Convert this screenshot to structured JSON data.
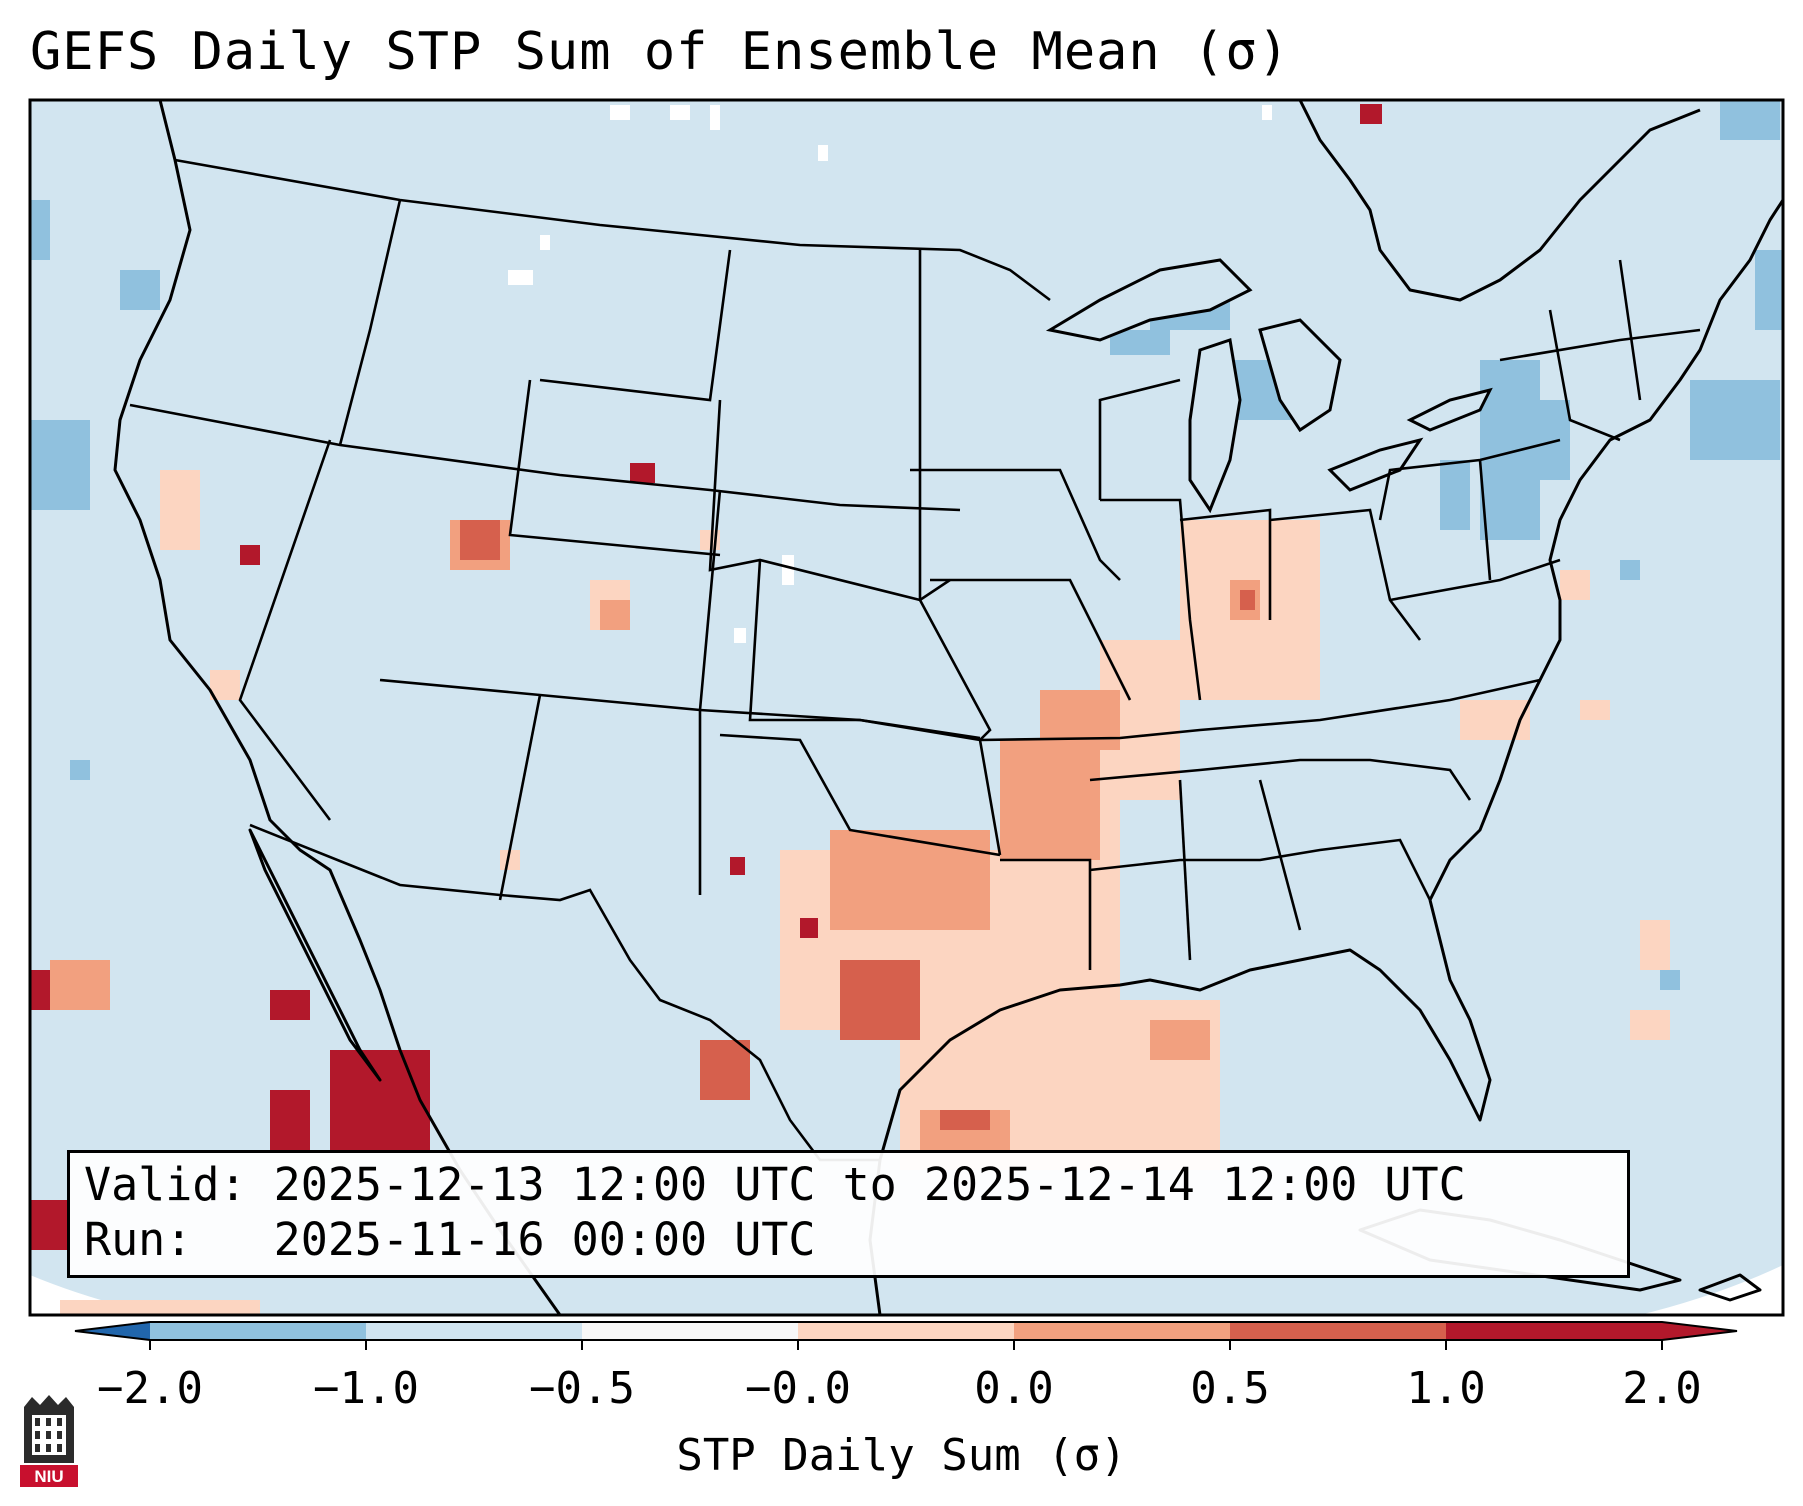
{
  "title": "GEFS Daily STP Sum of Ensemble Mean (σ)",
  "info": {
    "valid": "Valid: 2025-12-13 12:00 UTC to 2025-12-14 12:00 UTC",
    "run": "Run:   2025-11-16 00:00 UTC"
  },
  "colorbar": {
    "label": "STP Daily Sum (σ)",
    "ticks": [
      "−2.0",
      "−1.0",
      "−0.5",
      "−0.0",
      "0.0",
      "0.5",
      "1.0",
      "2.0"
    ],
    "colors": [
      "#3a7fbd",
      "#90c1de",
      "#d0e4f0",
      "#f7f7f7",
      "#fcd5c1",
      "#f2a07f",
      "#d6604d",
      "#b2182b"
    ]
  },
  "logo": {
    "text": "NIU",
    "color": "#c8102e"
  },
  "colors": {
    "ocean_land": "#d2e5f0",
    "outline": "#000000"
  }
}
